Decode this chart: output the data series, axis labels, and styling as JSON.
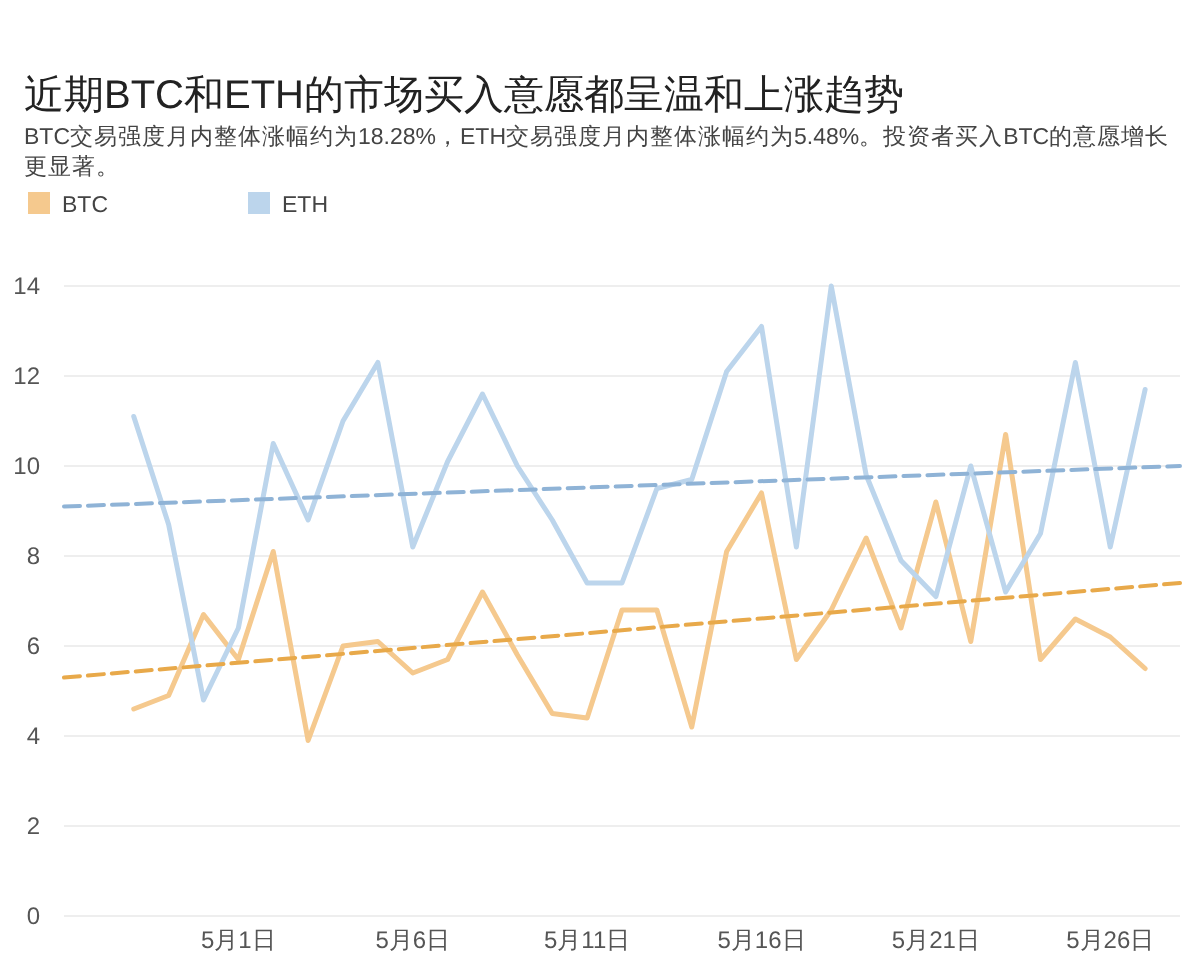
{
  "chart_data": {
    "type": "line",
    "title": "近期BTC和ETH的市场买入意愿都呈温和上涨趋势",
    "subtitle": "BTC交易强度月内整体涨幅约为18.28%，ETH交易强度月内整体涨幅约为5.48%。投资者买入BTC的意愿增长更显著。",
    "x": [
      "--04-28",
      "--04-29",
      "--04-30",
      "--05-01",
      "--05-02",
      "--05-03",
      "--05-04",
      "--05-05",
      "--05-06",
      "--05-07",
      "--05-08",
      "--05-09",
      "--05-10",
      "--05-11",
      "--05-12",
      "--05-13",
      "--05-14",
      "--05-15",
      "--05-16",
      "--05-17",
      "--05-18",
      "--05-19",
      "--05-20",
      "--05-21",
      "--05-22",
      "--05-23",
      "--05-24",
      "--05-25",
      "--05-26",
      "--05-27"
    ],
    "series": [
      {
        "name": "BTC",
        "color": "#f5c98e",
        "values": [
          4.6,
          4.9,
          6.7,
          5.7,
          8.1,
          3.9,
          6.0,
          6.1,
          5.4,
          5.7,
          7.2,
          5.8,
          4.5,
          4.4,
          6.8,
          6.8,
          4.2,
          8.1,
          9.4,
          5.7,
          6.8,
          8.4,
          6.4,
          9.2,
          6.1,
          10.7,
          5.7,
          6.6,
          6.2,
          5.5
        ]
      },
      {
        "name": "ETH",
        "color": "#bcd5ec",
        "values": [
          11.1,
          8.7,
          4.8,
          6.4,
          10.5,
          8.8,
          11.0,
          12.3,
          8.2,
          10.1,
          11.6,
          10.0,
          8.8,
          7.4,
          7.4,
          9.5,
          9.7,
          12.1,
          13.1,
          8.2,
          14.0,
          9.8,
          7.9,
          7.1,
          10.0,
          7.2,
          8.5,
          12.3,
          8.2,
          11.7
        ]
      },
      {
        "type": "line",
        "color": "#e8a94a",
        "line_style": "dashed",
        "x": [
          "--04-26",
          "--05-28"
        ],
        "values": [
          5.3,
          7.4
        ]
      },
      {
        "type": "line",
        "color": "#8fb3d6",
        "line_style": "dashed",
        "x": [
          "--04-26",
          "--05-28"
        ],
        "values": [
          9.1,
          10.0
        ]
      }
    ],
    "xlim": [
      "--04-26",
      "--05-28"
    ],
    "xticks": [
      {
        "value": "--05-01",
        "label": "5月1日"
      },
      {
        "value": "--05-06",
        "label": "5月6日"
      },
      {
        "value": "--05-11",
        "label": "5月11日"
      },
      {
        "value": "--05-16",
        "label": "5月16日"
      },
      {
        "value": "--05-21",
        "label": "5月21日"
      },
      {
        "value": "--05-26",
        "label": "5月26日"
      }
    ],
    "ylim": [
      0,
      14
    ],
    "yticks": [
      0,
      2,
      4,
      6,
      8,
      10,
      12,
      14
    ],
    "grid": "y",
    "legend": "top left"
  }
}
